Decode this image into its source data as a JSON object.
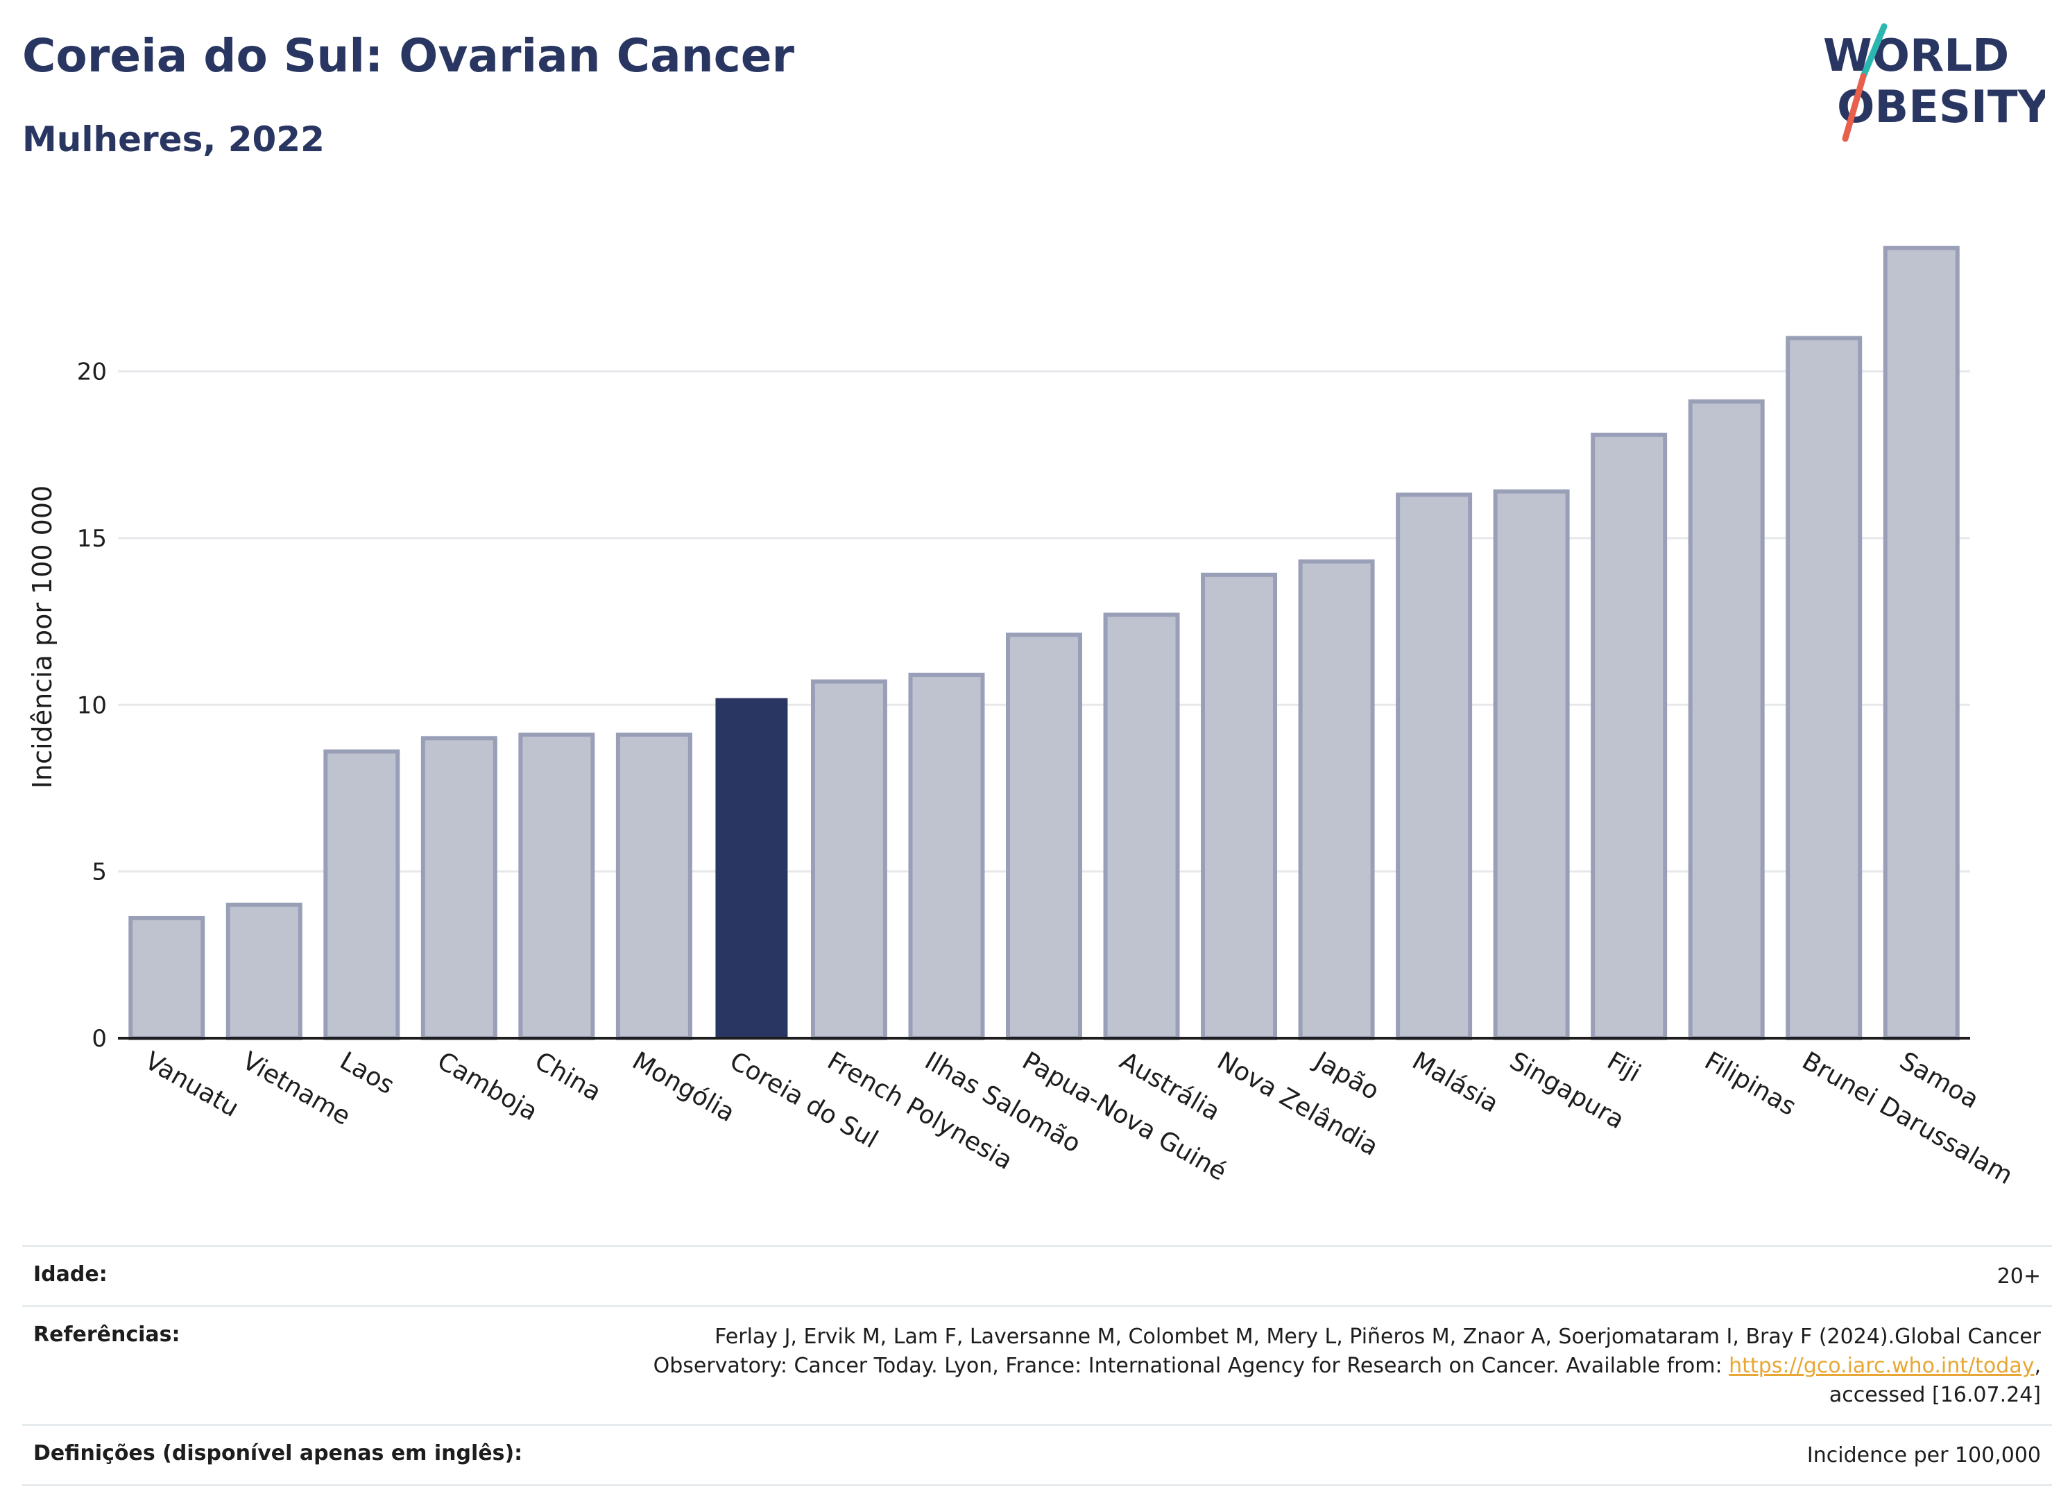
{
  "header": {
    "title": "Coreia do Sul: Ovarian Cancer",
    "subtitle": "Mulheres, 2022"
  },
  "logo": {
    "line1": "WORLD",
    "line2": "OBESITY"
  },
  "colors": {
    "highlight": "#2a3662",
    "bar_fill": "#bfc2cf",
    "bar_stroke": "#9a9fb8",
    "grid": "#e6e8ec",
    "logo_teal": "#2bb6b0",
    "logo_coral": "#e8604c"
  },
  "chart_data": {
    "type": "bar",
    "categories": [
      "Vanuatu",
      "Vietname",
      "Laos",
      "Camboja",
      "China",
      "Mongólia",
      "Coreia do Sul",
      "French Polynesia",
      "Ilhas Salomão",
      "Papua-Nova Guiné",
      "Austrália",
      "Nova Zelândia",
      "Japão",
      "Malásia",
      "Singapura",
      "Fiji",
      "Filipinas",
      "Brunei Darussalam",
      "Samoa"
    ],
    "values": [
      3.6,
      4.0,
      8.6,
      9.0,
      9.1,
      9.1,
      10.2,
      10.7,
      10.9,
      12.1,
      12.7,
      13.9,
      14.3,
      16.3,
      16.4,
      18.1,
      19.1,
      21.0,
      23.7
    ],
    "highlight_index": 6,
    "ylabel": "Incidência por 100 000",
    "xlabel": "",
    "yticks": [
      0,
      5,
      10,
      15,
      20
    ],
    "ylim": [
      0,
      24.9
    ],
    "grid": true
  },
  "info": {
    "age_label": "Idade:",
    "age_value": "20+",
    "refs_label": "Referências:",
    "refs_text_1": "Ferlay J, Ervik M, Lam F, Laversanne M, Colombet M, Mery L, Piñeros M, Znaor A, Soerjomataram I, Bray F (2024).Global Cancer Observatory: Cancer Today. Lyon, France: International Agency for Research on Cancer. Available from: ",
    "refs_link": "https://gco.iarc.who.int/today",
    "refs_text_2": ", accessed [16.07.24]",
    "defs_label": "Definições (disponível apenas em inglês):",
    "defs_value": "Incidence per 100,000"
  }
}
